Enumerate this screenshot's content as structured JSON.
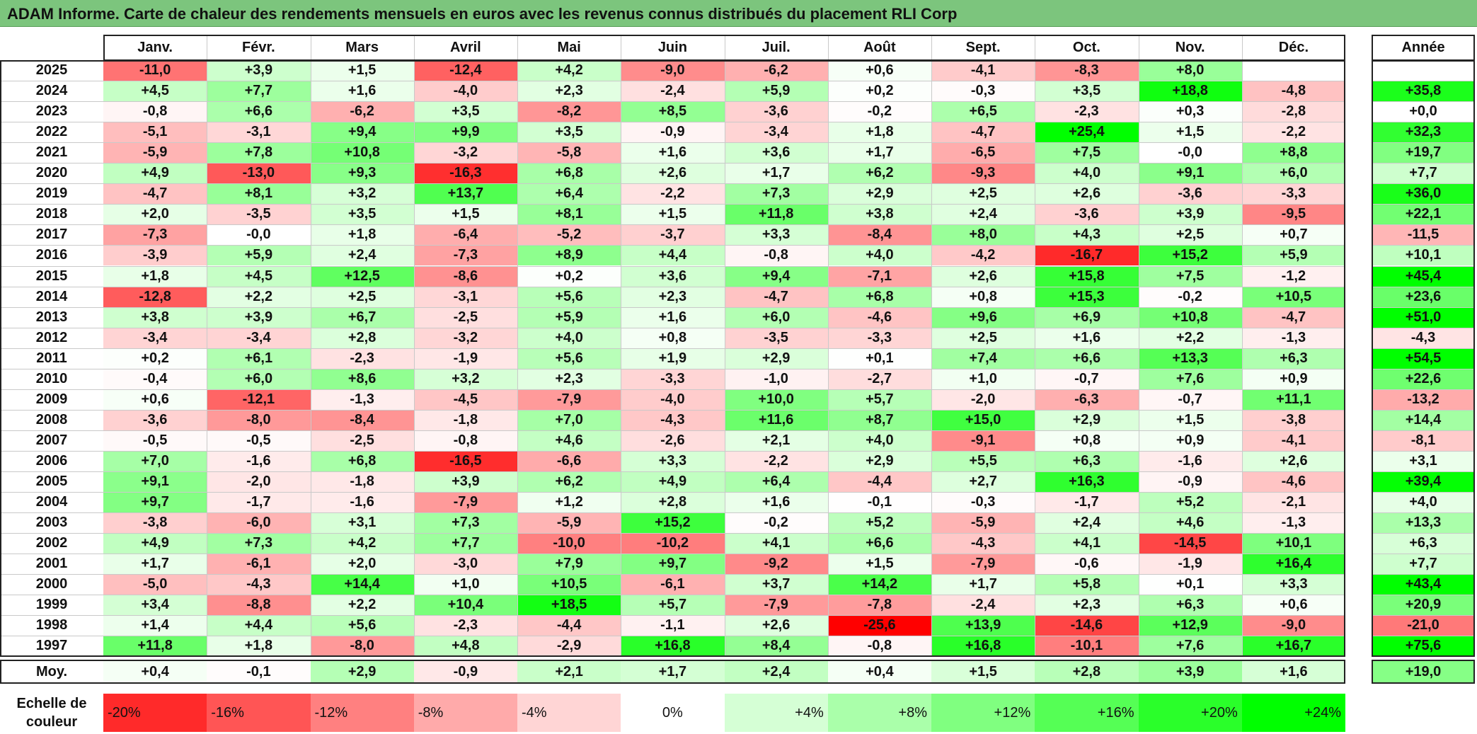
{
  "title": "ADAM Informe. Carte de chaleur des rendements mensuels en euros avec les revenus connus distribués du placement RLI Corp",
  "chart_data": {
    "type": "heatmap",
    "columns": [
      "Janv.",
      "Févr.",
      "Mars",
      "Avril",
      "Mai",
      "Juin",
      "Juil.",
      "Août",
      "Sept.",
      "Oct.",
      "Nov.",
      "Déc."
    ],
    "annual_header": "Année",
    "rows": [
      {
        "year": "2025",
        "values": [
          "-11,0",
          "+3,9",
          "+1,5",
          "-12,4",
          "+4,2",
          "-9,0",
          "-6,2",
          "+0,6",
          "-4,1",
          "-8,3",
          "+8,0",
          ""
        ],
        "annual": ""
      },
      {
        "year": "2024",
        "values": [
          "+4,5",
          "+7,7",
          "+1,6",
          "-4,0",
          "+2,3",
          "-2,4",
          "+5,9",
          "+0,2",
          "-0,3",
          "+3,5",
          "+18,8",
          "-4,8"
        ],
        "annual": "+35,8"
      },
      {
        "year": "2023",
        "values": [
          "-0,8",
          "+6,6",
          "-6,2",
          "+3,5",
          "-8,2",
          "+8,5",
          "-3,6",
          "-0,2",
          "+6,5",
          "-2,3",
          "+0,3",
          "-2,8"
        ],
        "annual": "+0,0"
      },
      {
        "year": "2022",
        "values": [
          "-5,1",
          "-3,1",
          "+9,4",
          "+9,9",
          "+3,5",
          "-0,9",
          "-3,4",
          "+1,8",
          "-4,7",
          "+25,4",
          "+1,5",
          "-2,2"
        ],
        "annual": "+32,3"
      },
      {
        "year": "2021",
        "values": [
          "-5,9",
          "+7,8",
          "+10,8",
          "-3,2",
          "-5,8",
          "+1,6",
          "+3,6",
          "+1,7",
          "-6,5",
          "+7,5",
          "-0,0",
          "+8,8"
        ],
        "annual": "+19,7"
      },
      {
        "year": "2020",
        "values": [
          "+4,9",
          "-13,0",
          "+9,3",
          "-16,3",
          "+6,8",
          "+2,6",
          "+1,7",
          "+6,2",
          "-9,3",
          "+4,0",
          "+9,1",
          "+6,0"
        ],
        "annual": "+7,7"
      },
      {
        "year": "2019",
        "values": [
          "-4,7",
          "+8,1",
          "+3,2",
          "+13,7",
          "+6,4",
          "-2,2",
          "+7,3",
          "+2,9",
          "+2,5",
          "+2,6",
          "-3,6",
          "-3,3"
        ],
        "annual": "+36,0"
      },
      {
        "year": "2018",
        "values": [
          "+2,0",
          "-3,5",
          "+3,5",
          "+1,5",
          "+8,1",
          "+1,5",
          "+11,8",
          "+3,8",
          "+2,4",
          "-3,6",
          "+3,9",
          "-9,5"
        ],
        "annual": "+22,1"
      },
      {
        "year": "2017",
        "values": [
          "-7,3",
          "-0,0",
          "+1,8",
          "-6,4",
          "-5,2",
          "-3,7",
          "+3,3",
          "-8,4",
          "+8,0",
          "+4,3",
          "+2,5",
          "+0,7"
        ],
        "annual": "-11,5"
      },
      {
        "year": "2016",
        "values": [
          "-3,9",
          "+5,9",
          "+2,4",
          "-7,3",
          "+8,9",
          "+4,4",
          "-0,8",
          "+4,0",
          "-4,2",
          "-16,7",
          "+15,2",
          "+5,9"
        ],
        "annual": "+10,1"
      },
      {
        "year": "2015",
        "values": [
          "+1,8",
          "+4,5",
          "+12,5",
          "-8,6",
          "+0,2",
          "+3,6",
          "+9,4",
          "-7,1",
          "+2,6",
          "+15,8",
          "+7,5",
          "-1,2"
        ],
        "annual": "+45,4"
      },
      {
        "year": "2014",
        "values": [
          "-12,8",
          "+2,2",
          "+2,5",
          "-3,1",
          "+5,6",
          "+2,3",
          "-4,7",
          "+6,8",
          "+0,8",
          "+15,3",
          "-0,2",
          "+10,5"
        ],
        "annual": "+23,6"
      },
      {
        "year": "2013",
        "values": [
          "+3,8",
          "+3,9",
          "+6,7",
          "-2,5",
          "+5,9",
          "+1,6",
          "+6,0",
          "-4,6",
          "+9,6",
          "+6,9",
          "+10,8",
          "-4,7"
        ],
        "annual": "+51,0"
      },
      {
        "year": "2012",
        "values": [
          "-3,4",
          "-3,4",
          "+2,8",
          "-3,2",
          "+4,0",
          "+0,8",
          "-3,5",
          "-3,3",
          "+2,5",
          "+1,6",
          "+2,2",
          "-1,3"
        ],
        "annual": "-4,3"
      },
      {
        "year": "2011",
        "values": [
          "+0,2",
          "+6,1",
          "-2,3",
          "-1,9",
          "+5,6",
          "+1,9",
          "+2,9",
          "+0,1",
          "+7,4",
          "+6,6",
          "+13,3",
          "+6,3"
        ],
        "annual": "+54,5"
      },
      {
        "year": "2010",
        "values": [
          "-0,4",
          "+6,0",
          "+8,6",
          "+3,2",
          "+2,3",
          "-3,3",
          "-1,0",
          "-2,7",
          "+1,0",
          "-0,7",
          "+7,6",
          "+0,9"
        ],
        "annual": "+22,6"
      },
      {
        "year": "2009",
        "values": [
          "+0,6",
          "-12,1",
          "-1,3",
          "-4,5",
          "-7,9",
          "-4,0",
          "+10,0",
          "+5,7",
          "-2,0",
          "-6,3",
          "-0,7",
          "+11,1"
        ],
        "annual": "-13,2"
      },
      {
        "year": "2008",
        "values": [
          "-3,6",
          "-8,0",
          "-8,4",
          "-1,8",
          "+7,0",
          "-4,3",
          "+11,6",
          "+8,7",
          "+15,0",
          "+2,9",
          "+1,5",
          "-3,8"
        ],
        "annual": "+14,4"
      },
      {
        "year": "2007",
        "values": [
          "-0,5",
          "-0,5",
          "-2,5",
          "-0,8",
          "+4,6",
          "-2,6",
          "+2,1",
          "+4,0",
          "-9,1",
          "+0,8",
          "+0,9",
          "-4,1"
        ],
        "annual": "-8,1"
      },
      {
        "year": "2006",
        "values": [
          "+7,0",
          "-1,6",
          "+6,8",
          "-16,5",
          "-6,6",
          "+3,3",
          "-2,2",
          "+2,9",
          "+5,5",
          "+6,3",
          "-1,6",
          "+2,6"
        ],
        "annual": "+3,1"
      },
      {
        "year": "2005",
        "values": [
          "+9,1",
          "-2,0",
          "-1,8",
          "+3,9",
          "+6,2",
          "+4,9",
          "+6,4",
          "-4,4",
          "+2,7",
          "+16,3",
          "-0,9",
          "-4,6"
        ],
        "annual": "+39,4"
      },
      {
        "year": "2004",
        "values": [
          "+9,7",
          "-1,7",
          "-1,6",
          "-7,9",
          "+1,2",
          "+2,8",
          "+1,6",
          "-0,1",
          "-0,3",
          "-1,7",
          "+5,2",
          "-2,1"
        ],
        "annual": "+4,0"
      },
      {
        "year": "2003",
        "values": [
          "-3,8",
          "-6,0",
          "+3,1",
          "+7,3",
          "-5,9",
          "+15,2",
          "-0,2",
          "+5,2",
          "-5,9",
          "+2,4",
          "+4,6",
          "-1,3"
        ],
        "annual": "+13,3"
      },
      {
        "year": "2002",
        "values": [
          "+4,9",
          "+7,3",
          "+4,2",
          "+7,7",
          "-10,0",
          "-10,2",
          "+4,1",
          "+6,6",
          "-4,3",
          "+4,1",
          "-14,5",
          "+10,1"
        ],
        "annual": "+6,3"
      },
      {
        "year": "2001",
        "values": [
          "+1,7",
          "-6,1",
          "+2,0",
          "-3,0",
          "+7,9",
          "+9,7",
          "-9,2",
          "+1,5",
          "-7,9",
          "-0,6",
          "-1,9",
          "+16,4"
        ],
        "annual": "+7,7"
      },
      {
        "year": "2000",
        "values": [
          "-5,0",
          "-4,3",
          "+14,4",
          "+1,0",
          "+10,5",
          "-6,1",
          "+3,7",
          "+14,2",
          "+1,7",
          "+5,8",
          "+0,1",
          "+3,3"
        ],
        "annual": "+43,4"
      },
      {
        "year": "1999",
        "values": [
          "+3,4",
          "-8,8",
          "+2,2",
          "+10,4",
          "+18,5",
          "+5,7",
          "-7,9",
          "-7,8",
          "-2,4",
          "+2,3",
          "+6,3",
          "+0,6"
        ],
        "annual": "+20,9"
      },
      {
        "year": "1998",
        "values": [
          "+1,4",
          "+4,4",
          "+5,6",
          "-2,3",
          "-4,4",
          "-1,1",
          "+2,6",
          "-25,6",
          "+13,9",
          "-14,6",
          "+12,9",
          "-9,0"
        ],
        "annual": "-21,0"
      },
      {
        "year": "1997",
        "values": [
          "+11,8",
          "+1,8",
          "-8,0",
          "+4,8",
          "-2,9",
          "+16,8",
          "+8,4",
          "-0,8",
          "+16,8",
          "-10,1",
          "+7,6",
          "+16,7"
        ],
        "annual": "+75,6"
      }
    ],
    "average_row": {
      "label": "Moy.",
      "values": [
        "+0,4",
        "-0,1",
        "+2,9",
        "-0,9",
        "+2,1",
        "+1,7",
        "+2,4",
        "+0,4",
        "+1,5",
        "+2,8",
        "+3,9",
        "+1,6"
      ],
      "annual": "+19,0"
    },
    "legend": {
      "label_line1": "Echelle de",
      "label_line2": "couleur",
      "stops": [
        "-20%",
        "-16%",
        "-12%",
        "-8%",
        "-4%",
        "0%",
        "+4%",
        "+8%",
        "+12%",
        "+16%",
        "+20%",
        "+24%"
      ]
    },
    "color_scale": {
      "negative": "#ff0000",
      "zero": "#ffffff",
      "positive": "#00ff00",
      "monthly_saturation": 20,
      "annual_saturation": 40
    }
  }
}
